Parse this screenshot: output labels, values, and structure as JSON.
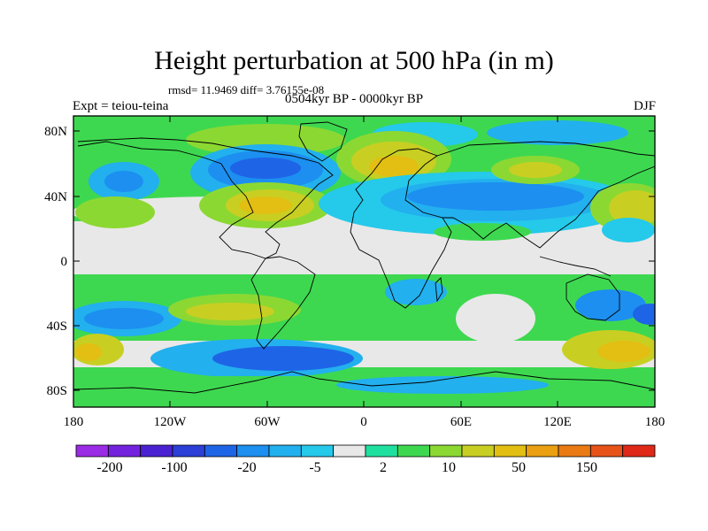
{
  "title": "Height perturbation at 500 hPa (in m)",
  "stats": "rmsd= 11.9469 diff= 3.76155e-08",
  "left_string": "Expt = teiou-teina",
  "center_string": "0504kyr BP - 0000kyr BP",
  "right_string": "DJF",
  "lat_ticks": [
    "80N",
    "40N",
    "0",
    "40S",
    "80S"
  ],
  "lon_ticks": [
    "180",
    "120W",
    "60W",
    "0",
    "60E",
    "120E",
    "180"
  ],
  "colorbar": {
    "colors": [
      "#9b2ce6",
      "#7323de",
      "#4a22d2",
      "#2c3fd6",
      "#1e64e6",
      "#1c8ff0",
      "#22b0ee",
      "#25c9ea",
      "#e8e8e8",
      "#20e0a0",
      "#3ed850",
      "#8cd832",
      "#c8cf22",
      "#e2bf12",
      "#eaa012",
      "#ea7a14",
      "#e65218",
      "#e02818"
    ],
    "labels": [
      "-200",
      "-100",
      "-20",
      "-5",
      "2",
      "10",
      "50",
      "150"
    ]
  },
  "legend_colors": {
    "strong_negative": "#1e64e6",
    "negative": "#1c8ff0",
    "weak_negative": "#25c9ea",
    "neutral": "#e8e8e8",
    "weak_positive": "#3ed850",
    "positive": "#c8cf22",
    "strong_positive": "#e2bf12"
  }
}
